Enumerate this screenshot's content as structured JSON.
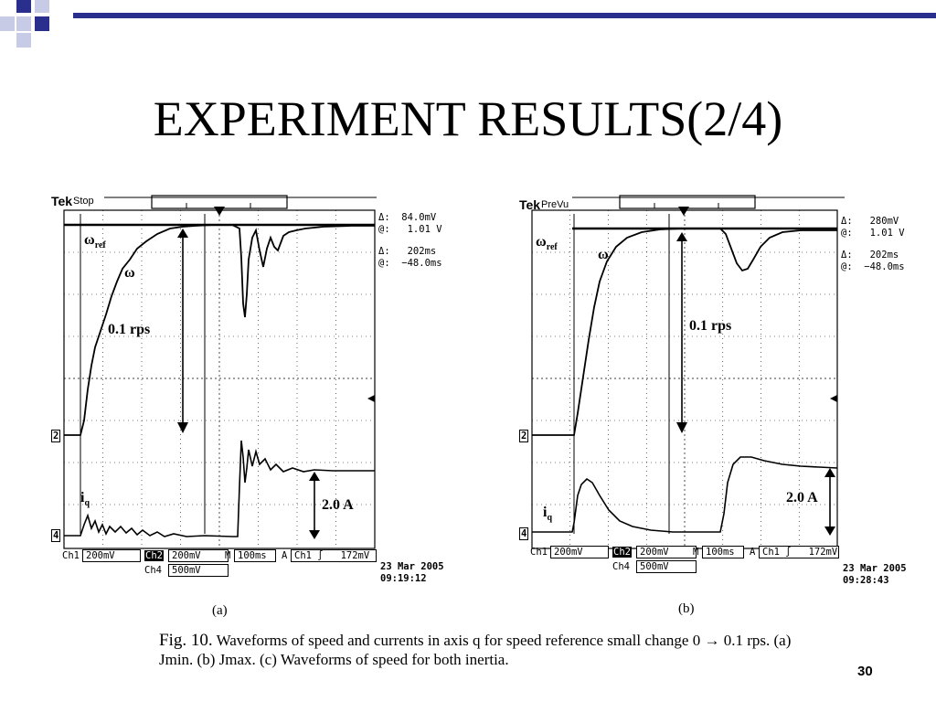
{
  "slide": {
    "title": "EXPERIMENT RESULTS(2/4)",
    "page_number": "30"
  },
  "scope_a": {
    "brand": "Tek",
    "mode": "Stop",
    "delta_v": "Δ:  84.0mV",
    "at_v": "@:   1.01 V",
    "delta_t": "Δ:   202ms",
    "at_t": "@:  −48.0ms",
    "label_omega_ref": "ω",
    "label_omega_ref_sub": "ref",
    "label_omega": "ω",
    "label_speed_step": "0.1 rps",
    "label_current": "i",
    "label_current_sub": "q",
    "label_current_step": "2.0 A",
    "marker_ch2": "2",
    "marker_ch4": "4",
    "ch1_label": "Ch1",
    "ch1_value": "200mV",
    "ch2_label": "Ch2",
    "ch2_value": "200mV",
    "time_label": "M",
    "time_value": "100ms",
    "trig_label": "A",
    "trig_value": "Ch1 ∫   172mV",
    "ch4_label": "Ch4",
    "ch4_value": "500mV",
    "date": "23 Mar 2005",
    "time": "09:19:12",
    "sublabel": "(a)"
  },
  "scope_b": {
    "brand": "Tek",
    "mode": "PreVu",
    "delta_v": "Δ:   280mV",
    "at_v": "@:   1.01 V",
    "delta_t": "Δ:   202ms",
    "at_t": "@:  −48.0ms",
    "label_omega_ref": "ω",
    "label_omega_ref_sub": "ref",
    "label_omega": "ω",
    "label_speed_step": "0.1 rps",
    "label_current": "i",
    "label_current_sub": "q",
    "label_current_step": "2.0 A",
    "marker_ch2": "2",
    "marker_ch4": "4",
    "ch1_label": "Ch1",
    "ch1_value": "200mV",
    "ch2_label": "Ch2",
    "ch2_value": "200mV",
    "time_label": "M",
    "time_value": "100ms",
    "trig_label": "A",
    "trig_value": "Ch1 ∫   172mV",
    "ch4_label": "Ch4",
    "ch4_value": "500mV",
    "date": "23 Mar 2005",
    "time": "09:28:43",
    "sublabel": "(b)"
  },
  "caption": {
    "fig": "Fig. 10.",
    "text": "Waveforms of speed and currents in axis q for speed reference small change 0 → 0.1 rps. (a) Jmin. (b) Jmax. (c) Waveforms of speed for both inertia."
  },
  "colors": {
    "accent_bar": "#2a2e8c",
    "accent_square": "#2a2e8c",
    "light_square": "#c8cbe6"
  }
}
